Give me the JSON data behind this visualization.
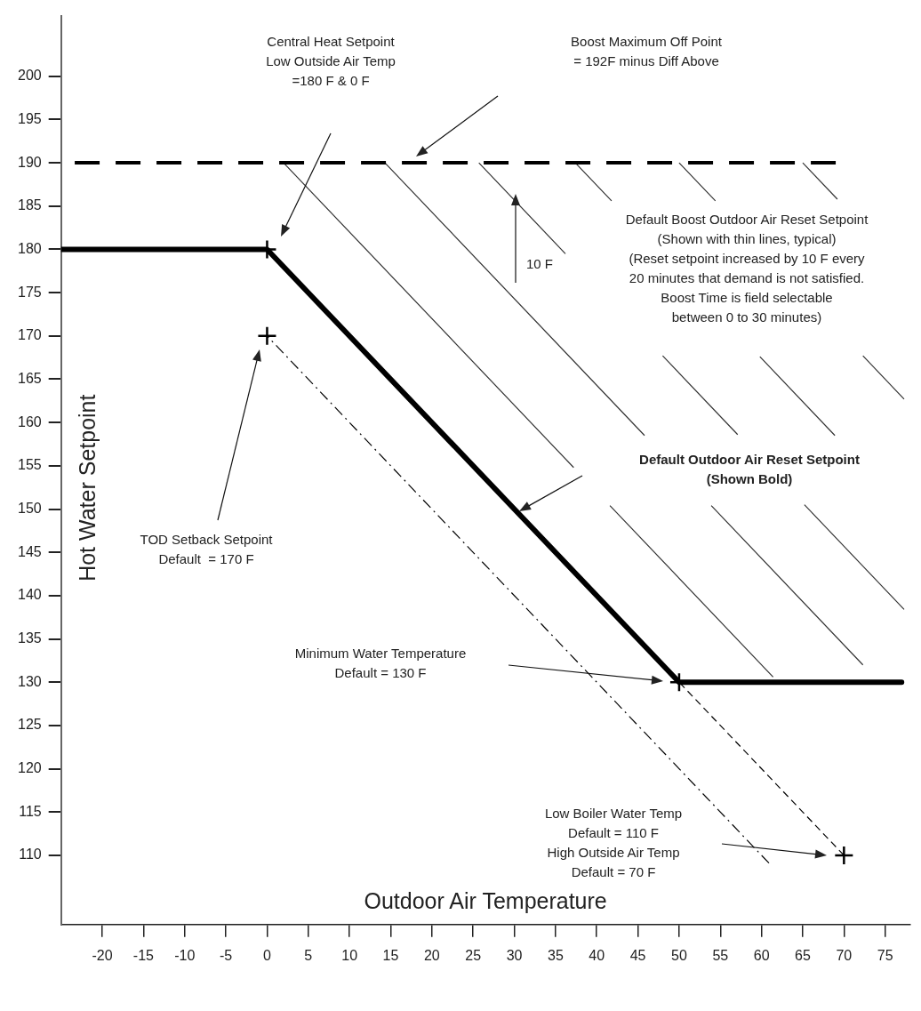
{
  "chart_data": {
    "type": "line",
    "xlabel": "Outdoor Air Temperature",
    "ylabel": "Hot Water Setpoint",
    "xlim": [
      -25,
      78
    ],
    "ylim": [
      102,
      207
    ],
    "xticks": [
      -20,
      -15,
      -10,
      -5,
      0,
      5,
      10,
      15,
      20,
      25,
      30,
      35,
      40,
      45,
      50,
      55,
      60,
      65,
      70,
      75
    ],
    "yticks": [
      110,
      115,
      120,
      125,
      130,
      135,
      140,
      145,
      150,
      155,
      160,
      165,
      170,
      175,
      180,
      185,
      190,
      195,
      200
    ],
    "grid": false,
    "legend": false,
    "series": [
      {
        "color": "#000000",
        "x": [
          -25,
          0,
          50,
          77
        ],
        "values": [
          180,
          180,
          130,
          130
        ]
      },
      {
        "color": "#000000",
        "line_style": "dashed",
        "x": [
          -25,
          69
        ],
        "values": [
          190,
          190
        ]
      },
      {
        "color": "#000000",
        "line_style": "dashed",
        "x": [
          0,
          60.9
        ],
        "values": [
          170,
          109.1
        ]
      },
      {
        "color": "#000000",
        "line_style": "dashed",
        "x": [
          50,
          70
        ],
        "values": [
          130,
          110
        ]
      },
      {
        "color": "#333333",
        "x": [
          2,
          37.2,
          39,
          41.6,
          61.4
        ],
        "values": [
          190,
          154.8,
          null,
          150.4,
          130.6
        ]
      },
      {
        "color": "#333333",
        "x": [
          14.3,
          45.8,
          50,
          53.9,
          72.3
        ],
        "values": [
          190,
          158.5,
          null,
          150.4,
          132
        ]
      },
      {
        "color": "#333333",
        "x": [
          25.7,
          36.2,
          42,
          48,
          57.1,
          61,
          65.2,
          77.3
        ],
        "values": [
          190,
          179.5,
          null,
          167.7,
          158.6,
          null,
          150.5,
          138.4
        ]
      },
      {
        "color": "#333333",
        "x": [
          37.4,
          41.8,
          50,
          59.8,
          68.9
        ],
        "values": [
          190,
          185.6,
          null,
          167.6,
          158.5
        ]
      },
      {
        "color": "#333333",
        "x": [
          50,
          54.4,
          63,
          72.3,
          77.3
        ],
        "values": [
          190,
          185.6,
          null,
          167.7,
          162.7
        ]
      },
      {
        "color": "#333333",
        "x": [
          65,
          69.2
        ],
        "values": [
          190,
          185.8
        ]
      },
      {
        "type": "scatter",
        "marker": "cross",
        "color": "#000000",
        "x": [
          0,
          0,
          50,
          70
        ],
        "values": [
          180,
          170,
          130,
          110
        ]
      }
    ],
    "annotations": [
      "Central Heat Setpoint\nLow Outside Air Temp\n=180 F & 0 F",
      "Boost Maximum Off Point\n= 192F minus Diff Above",
      "10 F",
      "Default Boost Outdoor Air Reset Setpoint\n(Shown with thin lines, typical)\n(Reset setpoint increased by 10 F every\n20 minutes that demand is not satisfied.\nBoost Time is field selectable\nbetween 0 to 30 minutes)",
      "Default Outdoor Air Reset Setpoint\n(Shown Bold)",
      "TOD Setback Setpoint\nDefault  = 170 F",
      "Minimum Water Temperature\nDefault = 130 F",
      "Low Boiler Water Temp\nDefault = 110 F\nHigh Outside Air Temp\nDefault = 70 F"
    ]
  }
}
